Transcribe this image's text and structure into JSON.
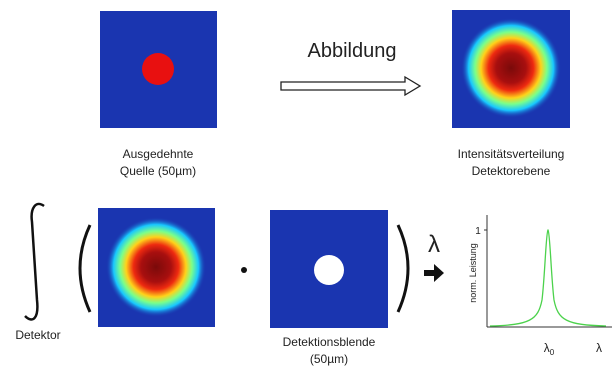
{
  "top": {
    "source_label": [
      "Ausgedehnte",
      "Quelle (50µm)"
    ],
    "arrow_label": "Abbildung",
    "result_label": [
      "Intensitätsverteilung",
      "Detektorebene"
    ]
  },
  "bottom": {
    "integral_label": "Detektor",
    "wavelength_symbol": "λ",
    "aperture_label": [
      "Detektionsblende",
      "(50µm)"
    ]
  },
  "plot": {
    "y_axis_label": "norm. Leistung",
    "y_tick": "1",
    "x_tick": {
      "symbol": "λ",
      "subscript": "0"
    },
    "x_axis_label": "λ"
  }
}
